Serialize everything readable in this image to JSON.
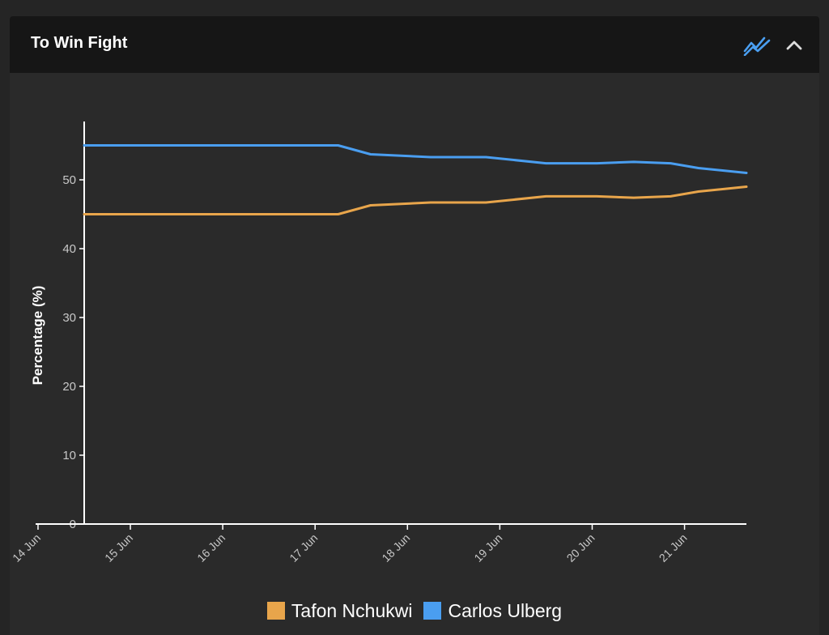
{
  "panel": {
    "title": "To Win Fight",
    "icons": {
      "chart_toggle": "line-chart-icon",
      "collapse": "chevron-up-icon"
    }
  },
  "colors": {
    "background": "#252525",
    "panel": "#2a2a2a",
    "header": "#161616",
    "series_tafon": "#e8a54b",
    "series_carlos": "#4a9ef0"
  },
  "chart_data": {
    "type": "line",
    "title": "",
    "xlabel": "",
    "ylabel": "Percentage (%)",
    "ylim": [
      0,
      56
    ],
    "yticks": [
      0,
      10,
      20,
      30,
      40,
      50
    ],
    "xtick_labels": [
      "14 Jun",
      "15 Jun",
      "16 Jun",
      "17 Jun",
      "18 Jun",
      "19 Jun",
      "20 Jun",
      "21 Jun"
    ],
    "xtick_days": [
      14,
      15,
      16,
      17,
      18,
      19,
      20,
      21
    ],
    "xlim": [
      14.5,
      21.67
    ],
    "grid": false,
    "legend_position": "bottom",
    "series": [
      {
        "name": "Tafon Nchukwi",
        "color": "#e8a54b",
        "points": [
          [
            14.5,
            45.0
          ],
          [
            17.25,
            45.0
          ],
          [
            17.6,
            46.3
          ],
          [
            18.25,
            46.7
          ],
          [
            18.85,
            46.7
          ],
          [
            19.5,
            47.6
          ],
          [
            20.05,
            47.6
          ],
          [
            20.45,
            47.4
          ],
          [
            20.85,
            47.6
          ],
          [
            21.15,
            48.3
          ],
          [
            21.67,
            49.0
          ]
        ]
      },
      {
        "name": "Carlos Ulberg",
        "color": "#4a9ef0",
        "points": [
          [
            14.5,
            55.0
          ],
          [
            17.25,
            55.0
          ],
          [
            17.6,
            53.7
          ],
          [
            18.25,
            53.3
          ],
          [
            18.85,
            53.3
          ],
          [
            19.5,
            52.4
          ],
          [
            20.05,
            52.4
          ],
          [
            20.45,
            52.6
          ],
          [
            20.85,
            52.4
          ],
          [
            21.15,
            51.7
          ],
          [
            21.67,
            51.0
          ]
        ]
      }
    ]
  }
}
